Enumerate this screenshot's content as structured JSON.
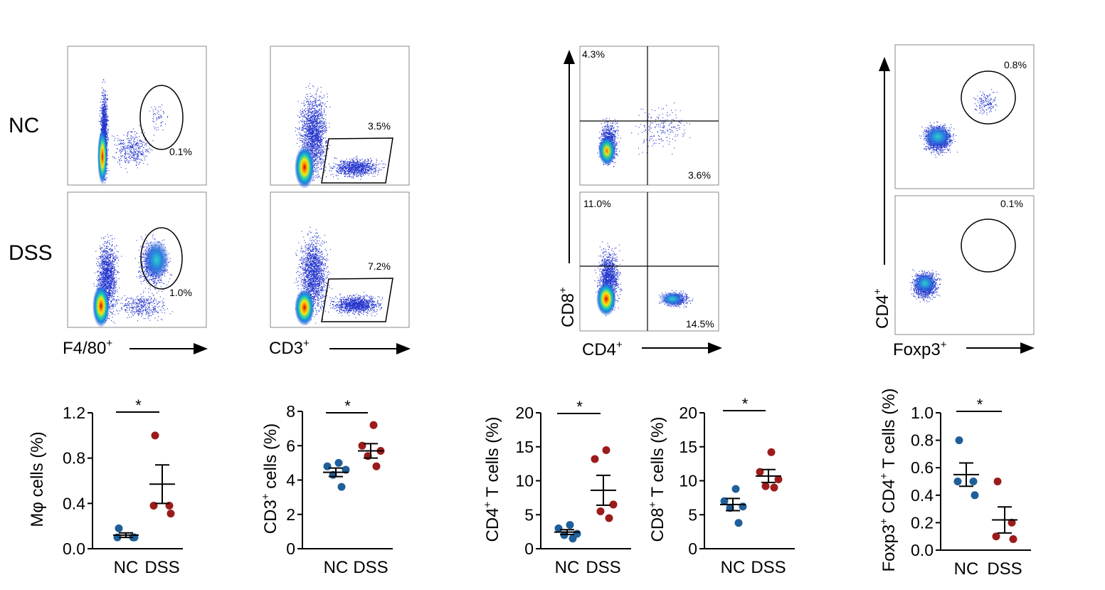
{
  "row_labels": {
    "nc": "NC",
    "dss": "DSS"
  },
  "flow": {
    "macrophage": {
      "xaxis_label": "F4/80",
      "xaxis_sup": "+",
      "gates": {
        "nc": "0.1%",
        "dss": "1.0%"
      }
    },
    "cd3": {
      "xaxis_label": "CD3",
      "xaxis_sup": "+",
      "gates": {
        "nc": "3.5%",
        "dss": "7.2%"
      }
    },
    "cd4cd8": {
      "xaxis_label": "CD4",
      "xaxis_sup": "+",
      "yaxis_label": "CD8",
      "yaxis_sup": "+",
      "quadrants": {
        "nc": {
          "upper_left": "4.3%",
          "lower_right": "3.6%"
        },
        "dss": {
          "upper_left": "11.0%",
          "lower_right": "14.5%"
        }
      }
    },
    "treg": {
      "xaxis_label": "Foxp3",
      "xaxis_sup": "+",
      "yaxis_label": "CD4",
      "yaxis_sup": "+",
      "gates": {
        "nc": "0.8%",
        "dss": "0.1%"
      }
    }
  },
  "colors": {
    "nc": "#1f5f99",
    "dss": "#9b1b1b",
    "axis": "#000000"
  },
  "chart_data": [
    {
      "type": "scatter",
      "id": "mphi",
      "ylabel": "Mφ cells (%)",
      "ylim": [
        0,
        1.2
      ],
      "yticks": [
        "0.0",
        "0.4",
        "0.8",
        "1.2"
      ],
      "yticks_values": [
        0,
        0.4,
        0.8,
        1.2
      ],
      "categories": [
        "NC",
        "DSS"
      ],
      "groups": [
        {
          "name": "NC",
          "values": [
            0.18,
            0.1,
            0.1,
            0.1
          ],
          "mean": 0.12,
          "sem": 0.02
        },
        {
          "name": "DSS",
          "values": [
            1.0,
            0.38,
            0.38,
            0.31
          ],
          "mean": 0.57,
          "sem": 0.17
        }
      ],
      "significance": "*"
    },
    {
      "type": "scatter",
      "id": "cd3",
      "ylabel": "CD3",
      "ylabel_sup": "+",
      "ylabel_tail": " cells (%)",
      "ylim": [
        0,
        8
      ],
      "yticks": [
        "0",
        "2",
        "4",
        "6",
        "8"
      ],
      "yticks_values": [
        0,
        2,
        4,
        6,
        8
      ],
      "categories": [
        "NC",
        "DSS"
      ],
      "groups": [
        {
          "name": "NC",
          "values": [
            5.0,
            4.8,
            4.6,
            4.3,
            3.6
          ],
          "mean": 4.45,
          "sem": 0.25
        },
        {
          "name": "DSS",
          "values": [
            7.2,
            6.0,
            5.7,
            5.4,
            4.8
          ],
          "mean": 5.7,
          "sem": 0.42
        }
      ],
      "significance": "*"
    },
    {
      "type": "scatter",
      "id": "cd4t",
      "ylabel": "CD4",
      "ylabel_sup": "+",
      "ylabel_tail": " T cells (%)",
      "ylim": [
        0,
        20
      ],
      "yticks": [
        "0",
        "5",
        "10",
        "15",
        "20"
      ],
      "yticks_values": [
        0,
        5,
        10,
        15,
        20
      ],
      "categories": [
        "NC",
        "DSS"
      ],
      "groups": [
        {
          "name": "NC",
          "values": [
            3.5,
            3.0,
            2.2,
            2.0,
            1.5
          ],
          "mean": 2.45,
          "sem": 0.35
        },
        {
          "name": "DSS",
          "values": [
            14.5,
            13.2,
            6.5,
            5.5,
            4.5
          ],
          "mean": 8.6,
          "sem": 2.2
        }
      ],
      "significance": "*"
    },
    {
      "type": "scatter",
      "id": "cd8t",
      "ylabel": "CD8",
      "ylabel_sup": "+",
      "ylabel_tail": " T cells (%)",
      "ylim": [
        0,
        20
      ],
      "yticks": [
        "0",
        "5",
        "10",
        "15",
        "20"
      ],
      "yticks_values": [
        0,
        5,
        10,
        15,
        20
      ],
      "categories": [
        "NC",
        "DSS"
      ],
      "groups": [
        {
          "name": "NC",
          "values": [
            8.8,
            7.0,
            6.2,
            6.0,
            3.8
          ],
          "mean": 6.5,
          "sem": 0.9
        },
        {
          "name": "DSS",
          "values": [
            14.2,
            11.3,
            10.2,
            9.2,
            9.0
          ],
          "mean": 10.7,
          "sem": 0.95
        }
      ],
      "significance": "*"
    },
    {
      "type": "scatter",
      "id": "treg",
      "ylabel": "Foxp3",
      "ylabel_sup": "+",
      "ylabel_mid": " CD4",
      "ylabel_sup2": "+",
      "ylabel_tail": " T cells (%)",
      "ylim": [
        0,
        1.0
      ],
      "yticks": [
        "0.0",
        "0.2",
        "0.4",
        "0.6",
        "0.8",
        "1.0"
      ],
      "yticks_values": [
        0,
        0.2,
        0.4,
        0.6,
        0.8,
        1.0
      ],
      "categories": [
        "NC",
        "DSS"
      ],
      "groups": [
        {
          "name": "NC",
          "values": [
            0.8,
            0.5,
            0.5,
            0.4
          ],
          "mean": 0.55,
          "sem": 0.085
        },
        {
          "name": "DSS",
          "values": [
            0.5,
            0.2,
            0.1,
            0.08
          ],
          "mean": 0.22,
          "sem": 0.095
        }
      ],
      "significance": "*"
    }
  ]
}
